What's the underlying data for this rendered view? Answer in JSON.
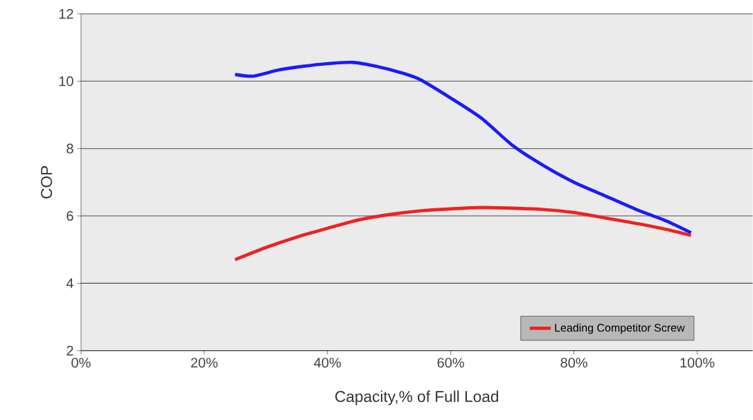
{
  "chart_data": {
    "type": "line",
    "xlabel": "Capacity,% of Full Load",
    "ylabel": "COP",
    "xlim": [
      0,
      109
    ],
    "ylim": [
      2,
      12
    ],
    "xticks": [
      {
        "value": 0,
        "label": "0%"
      },
      {
        "value": 20,
        "label": "20%"
      },
      {
        "value": 40,
        "label": "40%"
      },
      {
        "value": 60,
        "label": "60%"
      },
      {
        "value": 80,
        "label": "80%"
      },
      {
        "value": 100,
        "label": "100%"
      }
    ],
    "yticks": [
      2,
      4,
      6,
      8,
      10,
      12
    ],
    "grid": "y",
    "legend": "bottom right",
    "marker": "none",
    "line_style": "solid",
    "x": [
      25,
      28,
      32,
      36,
      40,
      44,
      48,
      52,
      55,
      60,
      65,
      70,
      75,
      80,
      85,
      90,
      95,
      99
    ],
    "series": [
      {
        "color": "#1a1aff",
        "values": [
          10.2,
          10.15,
          10.33,
          10.44,
          10.52,
          10.56,
          10.44,
          10.25,
          10.05,
          9.5,
          8.9,
          8.1,
          7.5,
          7.0,
          6.6,
          6.2,
          5.85,
          5.5
        ]
      },
      {
        "name": "Leading Competitor Screw",
        "color": "#ee2222",
        "x": [
          25,
          30,
          35,
          40,
          45,
          50,
          55,
          60,
          65,
          70,
          75,
          80,
          85,
          90,
          95,
          99
        ],
        "values": [
          4.7,
          5.06,
          5.37,
          5.63,
          5.88,
          6.04,
          6.15,
          6.21,
          6.25,
          6.23,
          6.19,
          6.1,
          5.94,
          5.78,
          5.6,
          5.42
        ]
      }
    ]
  }
}
